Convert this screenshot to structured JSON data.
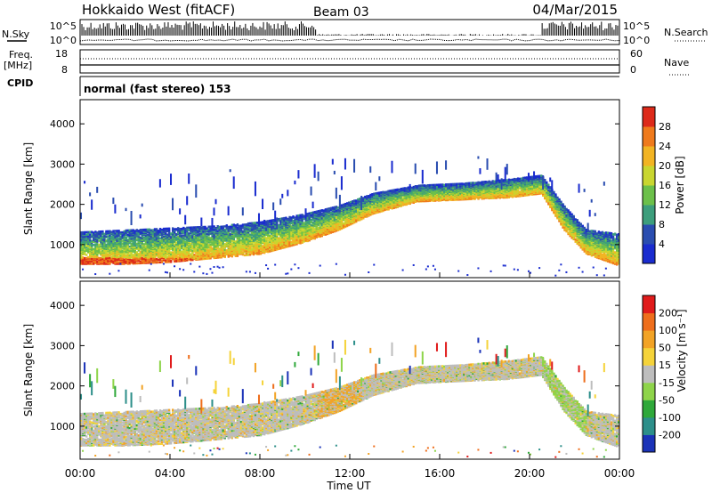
{
  "header": {
    "station": "Hokkaido West (fitACF)",
    "beam": "Beam 03",
    "date": "04/Mar/2015"
  },
  "noise_panel": {
    "left_label": "N.Sky",
    "right_label": "N.Search",
    "left_ticks": [
      "10^5",
      "10^0"
    ],
    "right_ticks": [
      "10^5",
      "10^0"
    ]
  },
  "freq_panel": {
    "left_label_line1": "Freq.",
    "left_label_line2": "[MHz]",
    "right_label": "Nave",
    "left_ticks": [
      "18",
      "8"
    ],
    "right_ticks": [
      "60",
      "0"
    ]
  },
  "cpid": {
    "label": "CPID",
    "text": "normal (fast stereo) 153"
  },
  "chart_data": [
    {
      "type": "heatmap",
      "name": "power",
      "xlabel": "",
      "ylabel": "Slant Range [km]",
      "y_ticks": [
        1000,
        2000,
        3000,
        4000
      ],
      "ylim": [
        180,
        4600
      ],
      "colorbar": {
        "label": "Power [dB]",
        "ticks": [
          "4",
          "8",
          "12",
          "16",
          "20",
          "24",
          "28"
        ],
        "colors": [
          "#1a2ccf",
          "#2a4db0",
          "#3d9e7c",
          "#6cc04a",
          "#c9d630",
          "#f2b423",
          "#ef7a1c",
          "#dd2a1a"
        ]
      },
      "echo_band": [
        {
          "hour": 0.0,
          "inner_km": 550,
          "outer_km": 1350
        },
        {
          "hour": 2.0,
          "inner_km": 550,
          "outer_km": 1400
        },
        {
          "hour": 4.0,
          "inner_km": 600,
          "outer_km": 1450
        },
        {
          "hour": 6.0,
          "inner_km": 700,
          "outer_km": 1500
        },
        {
          "hour": 8.0,
          "inner_km": 800,
          "outer_km": 1600
        },
        {
          "hour": 10.0,
          "inner_km": 1100,
          "outer_km": 1800
        },
        {
          "hour": 11.5,
          "inner_km": 1400,
          "outer_km": 2000
        },
        {
          "hour": 13.0,
          "inner_km": 1800,
          "outer_km": 2300
        },
        {
          "hour": 15.0,
          "inner_km": 2100,
          "outer_km": 2500
        },
        {
          "hour": 17.0,
          "inner_km": 2150,
          "outer_km": 2550
        },
        {
          "hour": 19.0,
          "inner_km": 2200,
          "outer_km": 2650
        },
        {
          "hour": 20.5,
          "inner_km": 2300,
          "outer_km": 2750
        },
        {
          "hour": 21.5,
          "inner_km": 1400,
          "outer_km": 2000
        },
        {
          "hour": 22.5,
          "inner_km": 800,
          "outer_km": 1400
        },
        {
          "hour": 24.0,
          "inner_km": 500,
          "outer_km": 1300
        }
      ]
    },
    {
      "type": "heatmap",
      "name": "velocity",
      "xlabel": "Time UT",
      "ylabel": "Slant Range [km]",
      "x_ticks": [
        "00:00",
        "04:00",
        "08:00",
        "12:00",
        "16:00",
        "20:00",
        "00:00"
      ],
      "xlim_hours": [
        0,
        24
      ],
      "y_ticks": [
        1000,
        2000,
        3000,
        4000
      ],
      "ylim": [
        180,
        4600
      ],
      "colorbar": {
        "label": "Velocity [m s⁻¹]",
        "ticks": [
          "200",
          "100",
          "50",
          "15",
          "-15",
          "-50",
          "-100",
          "-200"
        ],
        "colors": [
          "#1b33b8",
          "#2d8f8a",
          "#2fa83a",
          "#8ed44a",
          "#bdbdbd",
          "#f5d33a",
          "#f2a326",
          "#ee6e1c",
          "#e01b1b"
        ]
      }
    }
  ]
}
